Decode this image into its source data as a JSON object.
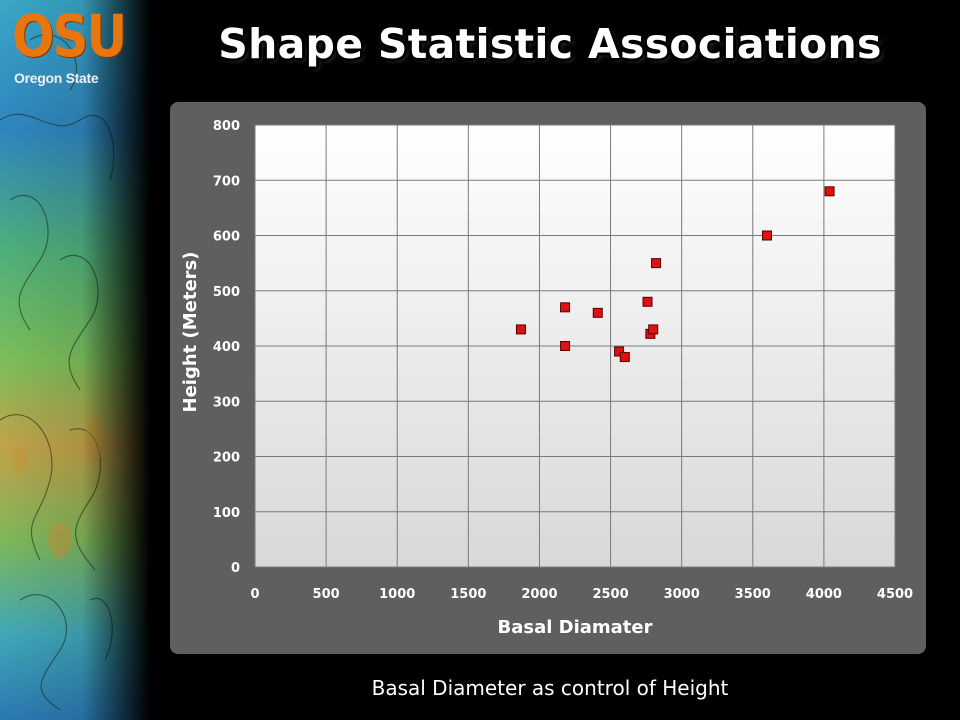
{
  "logo": {
    "mark": "OSU",
    "sub": "Oregon State"
  },
  "title": "Shape Statistic Associations",
  "caption": "Basal Diameter as control of Height",
  "colors": {
    "marker_fill": "#dd1111",
    "marker_stroke": "#550000",
    "panel": "#5f5f5f",
    "plot_bg_top": "#ffffff",
    "plot_bg_bottom": "#d8d8d8",
    "grid": "#7a7a7a"
  },
  "chart_data": {
    "type": "scatter",
    "title": "",
    "xlabel": "Basal Diamater",
    "ylabel": "Height (Meters)",
    "xlim": [
      0,
      4500
    ],
    "ylim": [
      0,
      800
    ],
    "xticks": [
      0,
      500,
      1000,
      1500,
      2000,
      2500,
      3000,
      3500,
      4000,
      4500
    ],
    "yticks": [
      0,
      100,
      200,
      300,
      400,
      500,
      600,
      700,
      800
    ],
    "grid": true,
    "legend": "none",
    "series": [
      {
        "points": [
          [
            1870,
            430
          ],
          [
            2180,
            470
          ],
          [
            2180,
            400
          ],
          [
            2410,
            460
          ],
          [
            2560,
            390
          ],
          [
            2600,
            380
          ],
          [
            2760,
            480
          ],
          [
            2780,
            422
          ],
          [
            2800,
            430
          ],
          [
            2820,
            550
          ],
          [
            3600,
            600
          ],
          [
            4040,
            680
          ]
        ]
      }
    ]
  }
}
